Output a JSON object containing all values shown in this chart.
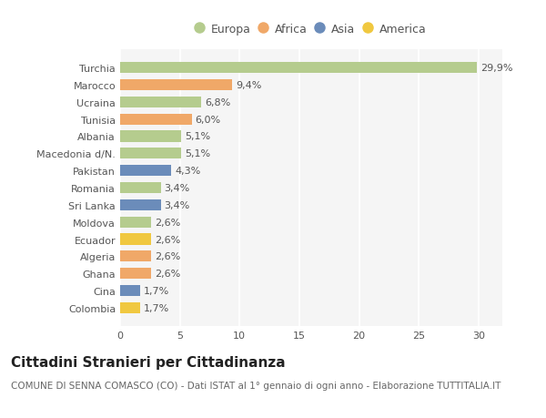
{
  "countries": [
    "Colombia",
    "Cina",
    "Ghana",
    "Algeria",
    "Ecuador",
    "Moldova",
    "Sri Lanka",
    "Romania",
    "Pakistan",
    "Macedonia d/N.",
    "Albania",
    "Tunisia",
    "Ucraina",
    "Marocco",
    "Turchia"
  ],
  "values": [
    1.7,
    1.7,
    2.6,
    2.6,
    2.6,
    2.6,
    3.4,
    3.4,
    4.3,
    5.1,
    5.1,
    6.0,
    6.8,
    9.4,
    29.9
  ],
  "labels": [
    "1,7%",
    "1,7%",
    "2,6%",
    "2,6%",
    "2,6%",
    "2,6%",
    "3,4%",
    "3,4%",
    "4,3%",
    "5,1%",
    "5,1%",
    "6,0%",
    "6,8%",
    "9,4%",
    "29,9%"
  ],
  "continent": [
    "America",
    "Asia",
    "Africa",
    "Africa",
    "America",
    "Europa",
    "Asia",
    "Europa",
    "Asia",
    "Europa",
    "Europa",
    "Africa",
    "Europa",
    "Africa",
    "Europa"
  ],
  "continent_colors": {
    "Europa": "#b5cc8e",
    "Africa": "#f0a868",
    "Asia": "#6b8cba",
    "America": "#f0c840"
  },
  "legend_entries": [
    "Europa",
    "Africa",
    "Asia",
    "America"
  ],
  "legend_colors": [
    "#b5cc8e",
    "#f0a868",
    "#6b8cba",
    "#f0c840"
  ],
  "xlim": [
    0,
    32
  ],
  "xticks": [
    0,
    5,
    10,
    15,
    20,
    25,
    30
  ],
  "title": "Cittadini Stranieri per Cittadinanza",
  "subtitle": "COMUNE DI SENNA COMASCO (CO) - Dati ISTAT al 1° gennaio di ogni anno - Elaborazione TUTTITALIA.IT",
  "background_color": "#ffffff",
  "plot_background": "#f5f5f5",
  "bar_height": 0.65,
  "title_fontsize": 11,
  "subtitle_fontsize": 7.5,
  "label_fontsize": 8,
  "tick_fontsize": 8,
  "legend_fontsize": 9
}
